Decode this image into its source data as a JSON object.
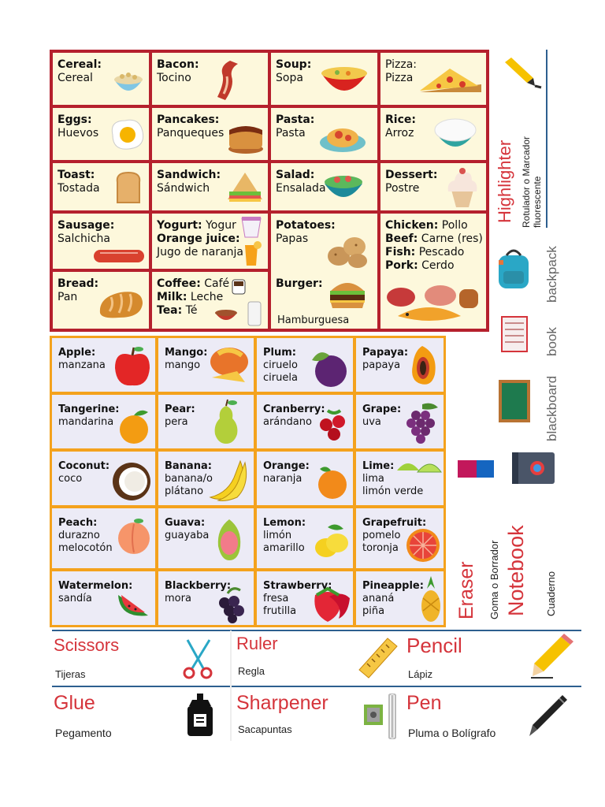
{
  "food": [
    {
      "id": "cereal",
      "lines": [
        {
          "b": "Cereal:",
          "t": ""
        },
        {
          "b": "",
          "t": "Cereal"
        }
      ]
    },
    {
      "id": "bacon",
      "lines": [
        {
          "b": "Bacon:",
          "t": ""
        },
        {
          "b": "",
          "t": "Tocino"
        }
      ]
    },
    {
      "id": "soup",
      "lines": [
        {
          "b": "Soup:",
          "t": ""
        },
        {
          "b": "",
          "t": "Sopa"
        }
      ]
    },
    {
      "id": "pizza",
      "lines": [
        {
          "b": "",
          "t": "Pizza:"
        },
        {
          "b": "",
          "t": "Pizza"
        }
      ]
    },
    {
      "id": "eggs",
      "lines": [
        {
          "b": "Eggs:",
          "t": ""
        },
        {
          "b": "",
          "t": "Huevos"
        }
      ]
    },
    {
      "id": "pancakes",
      "lines": [
        {
          "b": "Pancakes:",
          "t": ""
        },
        {
          "b": "",
          "t": "Panqueques"
        }
      ]
    },
    {
      "id": "pasta",
      "lines": [
        {
          "b": "Pasta:",
          "t": ""
        },
        {
          "b": "",
          "t": "Pasta"
        }
      ]
    },
    {
      "id": "rice",
      "lines": [
        {
          "b": "Rice:",
          "t": ""
        },
        {
          "b": "",
          "t": "Arroz"
        }
      ]
    },
    {
      "id": "toast",
      "lines": [
        {
          "b": "Toast:",
          "t": ""
        },
        {
          "b": "",
          "t": "Tostada"
        }
      ]
    },
    {
      "id": "sandwich",
      "lines": [
        {
          "b": "Sandwich:",
          "t": ""
        },
        {
          "b": "",
          "t": "Sándwich"
        }
      ]
    },
    {
      "id": "salad",
      "lines": [
        {
          "b": "Salad:",
          "t": ""
        },
        {
          "b": "",
          "t": "Ensalada"
        }
      ]
    },
    {
      "id": "dessert",
      "lines": [
        {
          "b": "Dessert:",
          "t": ""
        },
        {
          "b": "",
          "t": "Postre"
        }
      ]
    },
    {
      "id": "sausage",
      "lines": [
        {
          "b": "Sausage:",
          "t": ""
        },
        {
          "b": "",
          "t": "Salchicha"
        }
      ]
    },
    {
      "id": "yogurt",
      "lines": [
        {
          "b": "Yogurt:",
          "t": " Yogur"
        },
        {
          "b": "Orange juice:",
          "t": ""
        },
        {
          "b": "",
          "t": "Jugo de naranja"
        }
      ]
    },
    {
      "id": "potatoes",
      "lines": [
        {
          "b": "Potatoes:",
          "t": ""
        },
        {
          "b": "",
          "t": "Papas"
        }
      ]
    },
    {
      "id": "meats",
      "lines": [
        {
          "b": "Chicken:",
          "t": " Pollo"
        },
        {
          "b": "Beef:",
          "t": " Carne (res)"
        },
        {
          "b": "Fish:",
          "t": " Pescado"
        },
        {
          "b": "Pork:",
          "t": " Cerdo"
        }
      ]
    },
    {
      "id": "bread",
      "lines": [
        {
          "b": "Bread:",
          "t": ""
        },
        {
          "b": "",
          "t": "Pan"
        }
      ]
    },
    {
      "id": "coffee",
      "lines": [
        {
          "b": "Coffee:",
          "t": " Café"
        },
        {
          "b": "Milk:",
          "t": " Leche"
        },
        {
          "b": "Tea:",
          "t": " Té"
        }
      ]
    },
    {
      "id": "burger",
      "lines": [
        {
          "b": "Burger:",
          "t": ""
        }
      ],
      "extra": "Hamburguesa"
    }
  ],
  "fruit": [
    {
      "id": "apple",
      "lines": [
        {
          "b": "Apple:",
          "t": ""
        },
        {
          "b": "",
          "t": "manzana"
        }
      ]
    },
    {
      "id": "mango",
      "lines": [
        {
          "b": "Mango:",
          "t": ""
        },
        {
          "b": "",
          "t": "mango"
        }
      ]
    },
    {
      "id": "plum",
      "lines": [
        {
          "b": "Plum:",
          "t": ""
        },
        {
          "b": "",
          "t": "ciruelo"
        },
        {
          "b": "",
          "t": "ciruela"
        }
      ]
    },
    {
      "id": "papaya",
      "lines": [
        {
          "b": "Papaya:",
          "t": ""
        },
        {
          "b": "",
          "t": "papaya"
        }
      ]
    },
    {
      "id": "tangerine",
      "lines": [
        {
          "b": "Tangerine:",
          "t": ""
        },
        {
          "b": "",
          "t": "mandarina"
        }
      ]
    },
    {
      "id": "pear",
      "lines": [
        {
          "b": "Pear:",
          "t": ""
        },
        {
          "b": "",
          "t": "pera"
        }
      ]
    },
    {
      "id": "cranberry",
      "lines": [
        {
          "b": "Cranberry:",
          "t": ""
        },
        {
          "b": "",
          "t": "arándano"
        }
      ]
    },
    {
      "id": "grape",
      "lines": [
        {
          "b": "Grape:",
          "t": ""
        },
        {
          "b": "",
          "t": "uva"
        }
      ]
    },
    {
      "id": "coconut",
      "lines": [
        {
          "b": "Coconut:",
          "t": ""
        },
        {
          "b": "",
          "t": "coco"
        }
      ]
    },
    {
      "id": "banana",
      "lines": [
        {
          "b": "Banana:",
          "t": ""
        },
        {
          "b": "",
          "t": "banana/o"
        },
        {
          "b": "",
          "t": "plátano"
        }
      ]
    },
    {
      "id": "orange",
      "lines": [
        {
          "b": "Orange:",
          "t": ""
        },
        {
          "b": "",
          "t": "naranja"
        }
      ]
    },
    {
      "id": "lime",
      "lines": [
        {
          "b": "Lime:",
          "t": ""
        },
        {
          "b": "",
          "t": "lima"
        },
        {
          "b": "",
          "t": "limón verde"
        }
      ]
    },
    {
      "id": "peach",
      "lines": [
        {
          "b": "Peach:",
          "t": ""
        },
        {
          "b": "",
          "t": "durazno"
        },
        {
          "b": "",
          "t": "melocotón"
        }
      ]
    },
    {
      "id": "guava",
      "lines": [
        {
          "b": "Guava:",
          "t": ""
        },
        {
          "b": "",
          "t": "guayaba"
        }
      ]
    },
    {
      "id": "lemon",
      "lines": [
        {
          "b": "Lemon:",
          "t": ""
        },
        {
          "b": "",
          "t": "limón"
        },
        {
          "b": "",
          "t": "amarillo"
        }
      ]
    },
    {
      "id": "grapefruit",
      "lines": [
        {
          "b": "Grapefruit:",
          "t": ""
        },
        {
          "b": "",
          "t": "pomelo"
        },
        {
          "b": "",
          "t": "toronja"
        }
      ]
    },
    {
      "id": "watermelon",
      "lines": [
        {
          "b": "Watermelon:",
          "t": ""
        },
        {
          "b": "",
          "t": "sandía"
        }
      ]
    },
    {
      "id": "blackberry",
      "lines": [
        {
          "b": "Blackberry:",
          "t": ""
        },
        {
          "b": "",
          "t": "mora"
        }
      ]
    },
    {
      "id": "strawberry",
      "lines": [
        {
          "b": "Strawberry:",
          "t": ""
        },
        {
          "b": "",
          "t": "fresa"
        },
        {
          "b": "",
          "t": "frutilla"
        }
      ]
    },
    {
      "id": "pineapple",
      "lines": [
        {
          "b": "Pineapple:",
          "t": ""
        },
        {
          "b": "",
          "t": "ananá"
        },
        {
          "b": "",
          "t": "piña"
        }
      ]
    }
  ],
  "side": {
    "highlighter": "Highlighter",
    "highlighter_es_1": "Rotulador o Marcador",
    "highlighter_es_2": "fluorescente",
    "backpack": "backpack",
    "book": "book",
    "blackboard": "blackboard",
    "eraser": "Eraser",
    "eraser_es": "Goma o Borrador",
    "notebook": "Notebook",
    "notebook_es": "Cuaderno"
  },
  "supplies": {
    "scissors": {
      "en": "Scissors",
      "es": "Tijeras"
    },
    "ruler": {
      "en": "Ruler",
      "es": "Regla"
    },
    "pencil": {
      "en": "Pencil",
      "es": "Lápiz"
    },
    "glue": {
      "en": "Glue",
      "es": "Pegamento"
    },
    "sharpener": {
      "en": "Sharpener",
      "es": "Sacapuntas"
    },
    "pen": {
      "en": "Pen",
      "es": "Pluma o Bolígrafo"
    }
  },
  "colors": {
    "food_border": "#b5202d",
    "food_bg": "#fdf8dc",
    "fruit_border": "#f4a21d",
    "fruit_bg": "#ecebf6",
    "accent_red": "#d5343b",
    "rule_blue": "#2d5f8f"
  }
}
